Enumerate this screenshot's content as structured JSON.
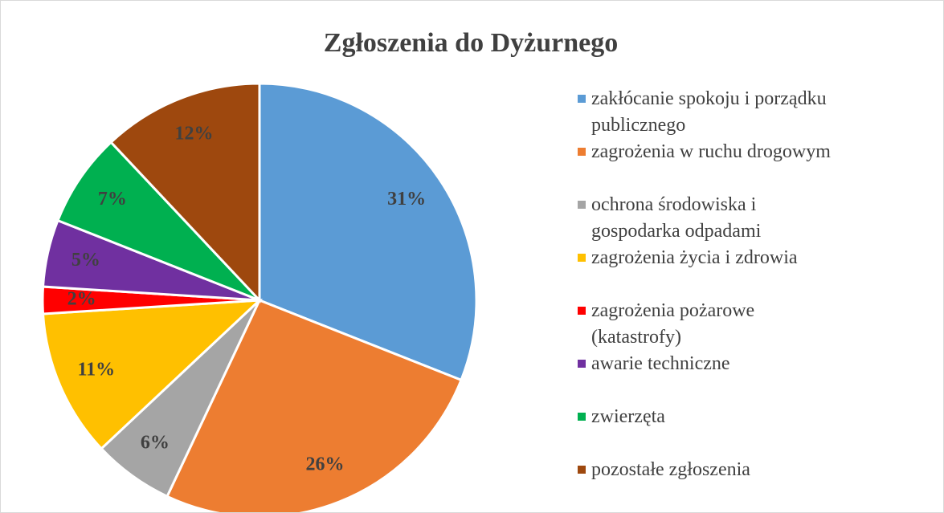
{
  "chart_data": {
    "type": "pie",
    "title": "Zgłoszenia do Dyżurnego",
    "categories": [
      "zakłócanie spokoju i porządku publicznego",
      "zagrożenia w ruchu drogowym",
      "ochrona środowiska i gospodarka odpadami",
      "zagrożenia życia i zdrowia",
      "zagrożenia pożarowe (katastrofy)",
      "awarie techniczne",
      "zwierzęta",
      "pozostałe zgłoszenia"
    ],
    "values": [
      31,
      26,
      6,
      11,
      2,
      5,
      7,
      12
    ],
    "value_labels": [
      "31%",
      "26%",
      "6%",
      "11%",
      "2%",
      "5%",
      "7%",
      "12%"
    ],
    "colors": [
      "#5b9bd5",
      "#ed7d31",
      "#a5a5a5",
      "#ffc000",
      "#ff0000",
      "#7030a0",
      "#00b050",
      "#9e480e"
    ],
    "legend": "right"
  }
}
